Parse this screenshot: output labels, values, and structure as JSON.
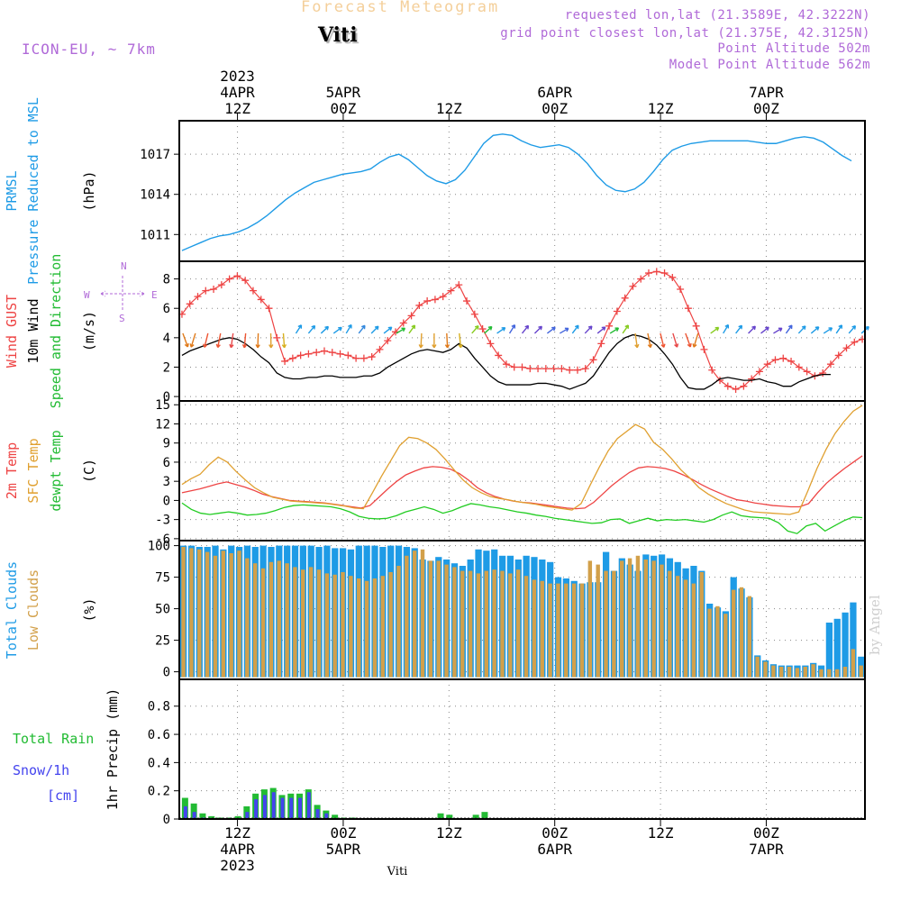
{
  "header": {
    "title": "Forecast Meteogram",
    "location": "Viti",
    "model": "ICON-EU, ~ 7km",
    "requested": "requested lon,lat (21.3589E, 42.3222N)",
    "grid": "grid point closest lon,lat (21.375E, 42.3125N)",
    "point_alt": "Point Altitude 502m",
    "model_alt": "Model Point Altitude 562m"
  },
  "footer_label": "Viti",
  "credit": "by Angel",
  "time_axis": {
    "hours": 78,
    "ticks": [
      {
        "h": 0,
        "top": "12Z",
        "mid": "4APR",
        "year": "2023",
        "bottom": "12Z",
        "bmid": "4APR",
        "byear": "2023"
      },
      {
        "h": 12,
        "top": "00Z",
        "mid": "5APR",
        "year": "",
        "bottom": "00Z",
        "bmid": "5APR",
        "byear": ""
      },
      {
        "h": 24,
        "top": "12Z",
        "mid": "",
        "year": "",
        "bottom": "12Z",
        "bmid": "",
        "byear": ""
      },
      {
        "h": 36,
        "top": "00Z",
        "mid": "6APR",
        "year": "",
        "bottom": "00Z",
        "bmid": "6APR",
        "byear": ""
      },
      {
        "h": 48,
        "top": "12Z",
        "mid": "",
        "year": "",
        "bottom": "12Z",
        "bmid": "",
        "byear": ""
      },
      {
        "h": 60,
        "top": "00Z",
        "mid": "7APR",
        "year": "",
        "bottom": "00Z",
        "bmid": "7APR",
        "byear": ""
      }
    ]
  },
  "colors": {
    "pressure": "#1e9be6",
    "gust": "#ee4444",
    "wind": "#000000",
    "temp": "#ee4444",
    "sfc": "#e0a030",
    "dew": "#22cc22",
    "total_clouds": "#1e9be6",
    "low_clouds": "#d2a04a",
    "rain": "#22bb33",
    "snow": "#4444ee",
    "label_purple": "#b06ad8"
  },
  "chart_data": [
    {
      "type": "line",
      "panel": "pressure",
      "ylabels": [
        {
          "text": "PRMSL",
          "color": "#1e9be6"
        },
        {
          "text": "Pressure Reduced to MSL",
          "color": "#1e9be6"
        },
        {
          "text": "(hPa)",
          "color": "#000000"
        }
      ],
      "ylim": [
        1009,
        1019.5
      ],
      "yticks": [
        1011,
        1014,
        1017
      ],
      "series": [
        {
          "values": [
            1009.8,
            1010.1,
            1010.4,
            1010.7,
            1010.9,
            1011,
            1011.2,
            1011.5,
            1011.9,
            1012.4,
            1013,
            1013.6,
            1014.1,
            1014.5,
            1014.9,
            1015.1,
            1015.3,
            1015.5,
            1015.6,
            1015.7,
            1015.9,
            1016.4,
            1016.8,
            1017.0,
            1016.6,
            1016.0,
            1015.4,
            1015.0,
            1014.8,
            1015.1,
            1015.8,
            1016.8,
            1017.8,
            1018.4,
            1018.5,
            1018.4,
            1018.0,
            1017.7,
            1017.5,
            1017.6,
            1017.7,
            1017.5,
            1017.0,
            1016.3,
            1015.4,
            1014.7,
            1014.3,
            1014.2,
            1014.4,
            1014.9,
            1015.7,
            1016.6,
            1017.3,
            1017.6,
            1017.8,
            1017.9,
            1018.0,
            1018.0,
            1018.0,
            1018.0,
            1018.0,
            1017.9,
            1017.8,
            1017.8,
            1018.0,
            1018.2,
            1018.3,
            1018.2,
            1017.9,
            1017.4,
            1016.9,
            1016.5
          ]
        }
      ]
    },
    {
      "type": "line",
      "panel": "wind",
      "ylabels": [
        {
          "text": "Wind GUST",
          "color": "#ee4444"
        },
        {
          "text": "10m Wind",
          "color": "#000000"
        },
        {
          "text": "Speed and Direction",
          "color": "#22bb33"
        },
        {
          "text": "(m/s)",
          "color": "#000000"
        }
      ],
      "compass": {
        "n": "N",
        "s": "S",
        "w": "W",
        "e": "E"
      },
      "ylim": [
        -0.3,
        9.2
      ],
      "yticks": [
        0,
        2,
        4,
        6,
        8
      ],
      "series": [
        {
          "name": "Wind GUST",
          "values": [
            5.6,
            6.3,
            6.8,
            7.2,
            7.3,
            7.6,
            8.0,
            8.2,
            7.9,
            7.2,
            6.6,
            6.0,
            4.0,
            2.4,
            2.6,
            2.8,
            2.9,
            3.0,
            3.1,
            3.0,
            2.9,
            2.8,
            2.6,
            2.6,
            2.7,
            3.2,
            3.8,
            4.4,
            5.0,
            5.5,
            6.2,
            6.5,
            6.6,
            6.8,
            7.2,
            7.6,
            6.5,
            5.6,
            4.6,
            3.6,
            2.8,
            2.2,
            2.0,
            2.0,
            1.9,
            1.9,
            1.9,
            1.9,
            1.9,
            1.8,
            1.8,
            1.9,
            2.5,
            3.6,
            4.8,
            5.8,
            6.7,
            7.5,
            8.0,
            8.4,
            8.5,
            8.4,
            8.1,
            7.3,
            6.0,
            4.8,
            3.2,
            1.8,
            1.1,
            0.7,
            0.5,
            0.7,
            1.2,
            1.7,
            2.2,
            2.5,
            2.6,
            2.4,
            2.0,
            1.7,
            1.4,
            1.6,
            2.2,
            2.8,
            3.3,
            3.7,
            3.9
          ]
        },
        {
          "name": "10m Wind",
          "values": [
            2.8,
            3.1,
            3.3,
            3.5,
            3.7,
            3.9,
            4.0,
            3.9,
            3.6,
            3.2,
            2.7,
            2.3,
            1.6,
            1.3,
            1.2,
            1.2,
            1.3,
            1.3,
            1.4,
            1.4,
            1.3,
            1.3,
            1.3,
            1.4,
            1.4,
            1.6,
            2.0,
            2.3,
            2.6,
            2.9,
            3.1,
            3.2,
            3.1,
            3.0,
            3.2,
            3.6,
            3.3,
            2.6,
            2.0,
            1.4,
            1.0,
            0.8,
            0.8,
            0.8,
            0.8,
            0.9,
            0.9,
            0.8,
            0.7,
            0.5,
            0.7,
            0.9,
            1.4,
            2.2,
            3.0,
            3.6,
            4.0,
            4.2,
            4.1,
            3.9,
            3.5,
            2.9,
            2.2,
            1.3,
            0.6,
            0.5,
            0.5,
            0.8,
            1.2,
            1.3,
            1.2,
            1.1,
            1.1,
            1.2,
            1.0,
            0.9,
            0.7,
            0.7,
            1.0,
            1.2,
            1.4,
            1.5,
            1.5
          ]
        }
      ]
    },
    {
      "type": "line",
      "panel": "temperature",
      "ylabels": [
        {
          "text": "2m Temp",
          "color": "#ee4444"
        },
        {
          "text": "SFC Temp",
          "color": "#e0a030"
        },
        {
          "text": "dewpt Temp",
          "color": "#22bb33"
        },
        {
          "text": "(C)",
          "color": "#000000"
        }
      ],
      "ylim": [
        -6.3,
        15.6
      ],
      "yticks": [
        -6,
        -3,
        0,
        3,
        6,
        9,
        12,
        15
      ],
      "series": [
        {
          "name": "2m Temp",
          "values": [
            1.2,
            1.5,
            1.8,
            2.2,
            2.6,
            2.9,
            2.5,
            2.1,
            1.6,
            1.0,
            0.6,
            0.3,
            0.0,
            -0.1,
            -0.2,
            -0.3,
            -0.4,
            -0.6,
            -0.8,
            -1.0,
            -1.2,
            -0.8,
            0.5,
            1.8,
            3.0,
            4.0,
            4.6,
            5.1,
            5.3,
            5.2,
            4.9,
            4.2,
            3.2,
            2.0,
            1.2,
            0.6,
            0.2,
            -0.1,
            -0.3,
            -0.4,
            -0.6,
            -0.8,
            -1.0,
            -1.2,
            -1.3,
            -1.2,
            -0.3,
            1.0,
            2.3,
            3.4,
            4.4,
            5.1,
            5.3,
            5.2,
            5.0,
            4.6,
            4.0,
            3.3,
            2.5,
            1.8,
            1.2,
            0.6,
            0.1,
            -0.1,
            -0.4,
            -0.6,
            -0.8,
            -0.9,
            -1.0,
            -1.0,
            -0.5,
            1.2,
            2.7,
            3.9,
            5.0,
            6.0,
            7.0
          ]
        },
        {
          "name": "SFC Temp",
          "values": [
            2.5,
            3.4,
            4.1,
            5.6,
            6.8,
            6.0,
            4.5,
            3.2,
            2.0,
            1.2,
            0.5,
            0.2,
            -0.1,
            -0.2,
            -0.3,
            -0.4,
            -0.5,
            -0.7,
            -0.9,
            -1.2,
            -1.3,
            1.2,
            3.8,
            6.2,
            8.6,
            9.9,
            9.7,
            9.0,
            8.0,
            6.5,
            4.8,
            3.2,
            2.0,
            1.2,
            0.6,
            0.3,
            0.1,
            -0.2,
            -0.4,
            -0.6,
            -0.9,
            -1.1,
            -1.3,
            -1.5,
            -0.5,
            2.4,
            5.2,
            7.8,
            9.7,
            10.8,
            11.9,
            11.2,
            9.1,
            8.0,
            6.5,
            4.8,
            3.5,
            2.0,
            1.0,
            0.2,
            -0.5,
            -1.0,
            -1.5,
            -1.8,
            -1.9,
            -2.0,
            -2.1,
            -2.2,
            -1.8,
            1.5,
            5.0,
            8.0,
            10.5,
            12.4,
            14.0,
            14.9
          ]
        },
        {
          "name": "dewpt Temp",
          "values": [
            -0.4,
            -1.4,
            -2.0,
            -2.2,
            -2.0,
            -1.8,
            -2.0,
            -2.3,
            -2.2,
            -2.0,
            -1.6,
            -1.1,
            -0.8,
            -0.7,
            -0.8,
            -0.9,
            -1.0,
            -1.3,
            -1.8,
            -2.5,
            -2.8,
            -2.9,
            -2.8,
            -2.4,
            -1.8,
            -1.4,
            -1.0,
            -1.4,
            -2.0,
            -1.6,
            -1.0,
            -0.5,
            -0.7,
            -1.0,
            -1.2,
            -1.5,
            -1.8,
            -2.0,
            -2.3,
            -2.5,
            -2.8,
            -3.0,
            -3.2,
            -3.4,
            -3.6,
            -3.5,
            -3.0,
            -2.9,
            -3.6,
            -3.2,
            -2.8,
            -3.2,
            -3.0,
            -3.1,
            -3.0,
            -3.2,
            -3.4,
            -3.0,
            -2.3,
            -1.8,
            -2.4,
            -2.6,
            -2.7,
            -2.8,
            -3.5,
            -4.8,
            -5.2,
            -4.0,
            -3.6,
            -4.8,
            -4.0,
            -3.2,
            -2.6,
            -2.7
          ]
        }
      ]
    },
    {
      "type": "bar",
      "panel": "clouds",
      "ylabels": [
        {
          "text": "Total Clouds",
          "color": "#1e9be6"
        },
        {
          "text": "Low Clouds",
          "color": "#d2a04a"
        },
        {
          "text": "(%)",
          "color": "#000000"
        }
      ],
      "ylim": [
        -6,
        104
      ],
      "yticks": [
        0,
        25,
        50,
        75,
        100
      ],
      "series": [
        {
          "name": "Total Clouds",
          "values": [
            100,
            100,
            99,
            99,
            100,
            97,
            100,
            99,
            100,
            99,
            100,
            99,
            100,
            100,
            100,
            100,
            100,
            99,
            100,
            98,
            98,
            97,
            100,
            100,
            100,
            99,
            100,
            100,
            99,
            98,
            89,
            88,
            91,
            89,
            86,
            84,
            89,
            97,
            96,
            97,
            92,
            92,
            89,
            92,
            91,
            89,
            87,
            75,
            74,
            72,
            70,
            71,
            71,
            95,
            80,
            90,
            85,
            80,
            93,
            92,
            93,
            90,
            87,
            82,
            84,
            80,
            54,
            51,
            48,
            75,
            66,
            59,
            13,
            9,
            6,
            5,
            5,
            5,
            5,
            7,
            5,
            39,
            42,
            47,
            55,
            12
          ]
        },
        {
          "name": "Low Clouds",
          "values": [
            99,
            98,
            97,
            95,
            92,
            96,
            94,
            96,
            90,
            86,
            82,
            87,
            88,
            86,
            83,
            81,
            83,
            81,
            78,
            77,
            79,
            76,
            74,
            72,
            74,
            76,
            79,
            84,
            92,
            96,
            97,
            88,
            88,
            85,
            83,
            80,
            80,
            78,
            80,
            81,
            80,
            78,
            81,
            76,
            73,
            72,
            70,
            70,
            70,
            70,
            70,
            88,
            85,
            80,
            80,
            88,
            90,
            92,
            89,
            88,
            85,
            80,
            76,
            73,
            70,
            79,
            50,
            52,
            46,
            65,
            67,
            60,
            12,
            8,
            5,
            4,
            4,
            3,
            4,
            6,
            2,
            2,
            2,
            4,
            18,
            5
          ]
        }
      ]
    },
    {
      "type": "bar",
      "panel": "precipitation",
      "ylabels": [
        {
          "text": "1hr Precip (mm)",
          "color": "#000000"
        }
      ],
      "side_labels": [
        {
          "text": "Total  Rain",
          "color": "#22bb33"
        },
        {
          "text": "Snow/1h",
          "color": "#4444ee"
        },
        {
          "text": "[cm]",
          "color": "#4444ee"
        }
      ],
      "ylim": [
        0,
        0.99
      ],
      "yticks": [
        0,
        0.2,
        0.4,
        0.6,
        0.8
      ],
      "ytick_labels": [
        "0",
        "0.2",
        "0.4",
        "0.6",
        "0.8"
      ],
      "series": [
        {
          "name": "Total Rain",
          "x": [
            -6,
            -5,
            -4,
            -3,
            -2,
            -1,
            0,
            1,
            2,
            3,
            4,
            5,
            6,
            7,
            8,
            9,
            10,
            11,
            12,
            13,
            23,
            24,
            27,
            28
          ],
          "values": [
            0.15,
            0.11,
            0.04,
            0.02,
            0.01,
            0.01,
            0.02,
            0.09,
            0.18,
            0.21,
            0.22,
            0.17,
            0.18,
            0.18,
            0.21,
            0.1,
            0.06,
            0.03,
            0.01,
            0.01,
            0.04,
            0.03,
            0.03,
            0.05
          ]
        },
        {
          "name": "Snow/1h",
          "x": [
            -6,
            -5,
            -4,
            1,
            2,
            3,
            4,
            5,
            6,
            7,
            8,
            9,
            10
          ],
          "values": [
            0.09,
            0.05,
            0.01,
            0.05,
            0.14,
            0.17,
            0.19,
            0.15,
            0.15,
            0.15,
            0.19,
            0.07,
            0.04
          ]
        }
      ]
    }
  ]
}
